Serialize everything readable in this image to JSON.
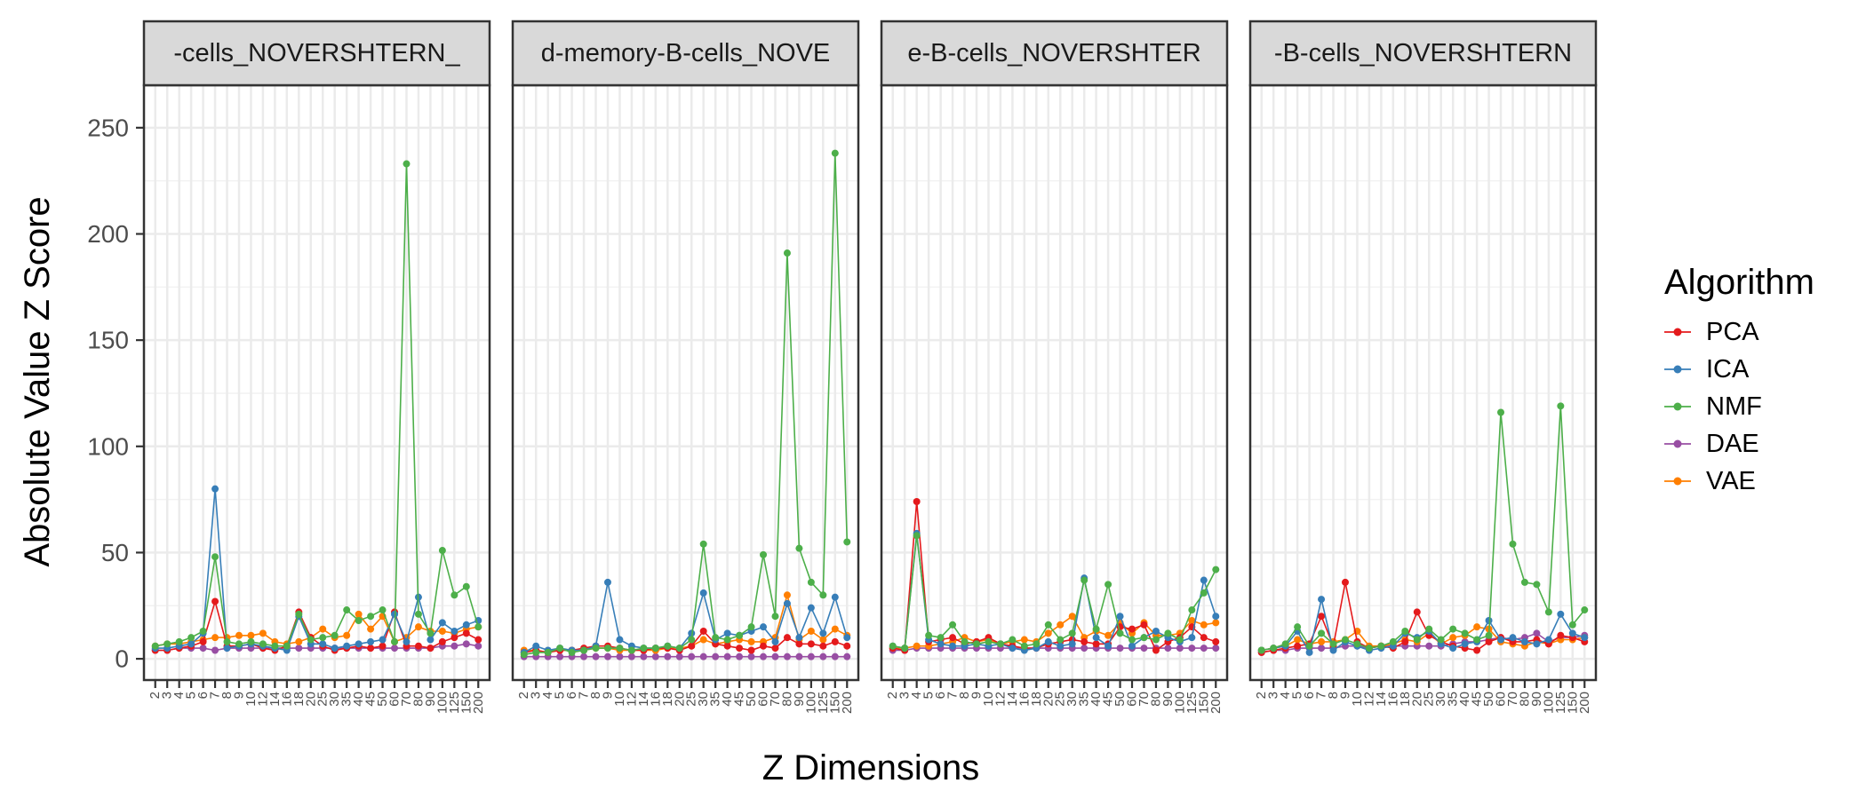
{
  "chart_data": {
    "type": "line",
    "ylabel": "Absolute Value Z Score",
    "xlabel": "Z Dimensions",
    "ylim": [
      -10,
      270
    ],
    "y_ticks": [
      0,
      50,
      100,
      150,
      200,
      250
    ],
    "x": [
      "2",
      "3",
      "4",
      "5",
      "6",
      "7",
      "8",
      "9",
      "10",
      "12",
      "14",
      "16",
      "18",
      "20",
      "25",
      "30",
      "35",
      "40",
      "45",
      "50",
      "60",
      "70",
      "80",
      "90",
      "100",
      "125",
      "150",
      "200"
    ],
    "x_tick_labels": [
      "2",
      "3",
      "4",
      "5",
      "6",
      "7",
      "8",
      "9",
      "10",
      "12",
      "14",
      "16",
      "18",
      "20",
      "25",
      "30",
      "35",
      "40",
      "45",
      "50",
      "60",
      "70",
      "80",
      "90",
      "100",
      "125",
      "150",
      "200"
    ],
    "legend": {
      "title": "Algorithm",
      "position": "right",
      "entries": [
        "PCA",
        "ICA",
        "NMF",
        "DAE",
        "VAE"
      ]
    },
    "colors": {
      "PCA": "#e41a1c",
      "ICA": "#377eb8",
      "NMF": "#4daf4a",
      "DAE": "#984ea3",
      "VAE": "#ff7f00"
    },
    "grid": true,
    "facets": [
      {
        "strip_text": "-cells_NOVERSHTERN_",
        "series": [
          {
            "name": "PCA",
            "values": [
              4,
              4,
              5,
              6,
              8,
              27,
              6,
              6,
              7,
              5,
              4,
              6,
              22,
              10,
              6,
              4,
              5,
              6,
              5,
              6,
              22,
              6,
              6,
              5,
              8,
              10,
              12,
              9
            ]
          },
          {
            "name": "ICA",
            "values": [
              5,
              5,
              6,
              7,
              12,
              80,
              5,
              6,
              7,
              6,
              5,
              4,
              20,
              7,
              7,
              5,
              6,
              7,
              8,
              9,
              21,
              8,
              29,
              9,
              17,
              13,
              16,
              18
            ]
          },
          {
            "name": "NMF",
            "values": [
              6,
              7,
              8,
              10,
              13,
              48,
              8,
              7,
              8,
              7,
              6,
              6,
              21,
              9,
              10,
              11,
              23,
              18,
              20,
              23,
              8,
              233,
              21,
              12,
              51,
              30,
              34,
              15
            ]
          },
          {
            "name": "DAE",
            "values": [
              4,
              4,
              5,
              5,
              5,
              4,
              5,
              5,
              5,
              5,
              5,
              5,
              5,
              5,
              5,
              5,
              5,
              5,
              5,
              5,
              5,
              5,
              5,
              5,
              6,
              6,
              7,
              6
            ]
          },
          {
            "name": "VAE",
            "values": [
              6,
              7,
              7,
              8,
              9,
              10,
              10,
              11,
              11,
              12,
              8,
              7,
              8,
              10,
              14,
              10,
              11,
              21,
              14,
              20,
              8,
              10,
              15,
              13,
              13,
              12,
              14,
              15
            ]
          }
        ]
      },
      {
        "strip_text": "d-memory-B-cells_NOVE",
        "series": [
          {
            "name": "PCA",
            "values": [
              3,
              4,
              3,
              4,
              4,
              5,
              6,
              6,
              5,
              4,
              4,
              5,
              5,
              4,
              6,
              13,
              7,
              6,
              5,
              4,
              6,
              5,
              10,
              7,
              7,
              6,
              8,
              6
            ]
          },
          {
            "name": "ICA",
            "values": [
              3,
              6,
              4,
              5,
              4,
              4,
              6,
              36,
              9,
              6,
              5,
              5,
              6,
              5,
              12,
              31,
              9,
              12,
              11,
              13,
              15,
              8,
              26,
              10,
              24,
              12,
              29,
              10
            ]
          },
          {
            "name": "NMF",
            "values": [
              2,
              3,
              3,
              5,
              3,
              4,
              5,
              5,
              5,
              4,
              5,
              5,
              6,
              5,
              9,
              54,
              10,
              9,
              11,
              15,
              49,
              20,
              191,
              52,
              36,
              30,
              238,
              55
            ]
          },
          {
            "name": "DAE",
            "values": [
              1,
              1,
              1,
              1,
              1,
              1,
              1,
              1,
              1,
              1,
              1,
              1,
              1,
              1,
              1,
              1,
              1,
              1,
              1,
              1,
              1,
              1,
              1,
              1,
              1,
              1,
              1,
              1
            ]
          },
          {
            "name": "VAE",
            "values": [
              4,
              4,
              3,
              4,
              4,
              4,
              5,
              5,
              4,
              4,
              4,
              4,
              5,
              5,
              6,
              9,
              7,
              8,
              9,
              8,
              8,
              10,
              30,
              9,
              13,
              9,
              14,
              11
            ]
          }
        ]
      },
      {
        "strip_text": "e-B-cells_NOVERSHTER",
        "series": [
          {
            "name": "PCA",
            "values": [
              5,
              4,
              74,
              8,
              9,
              10,
              7,
              8,
              10,
              7,
              6,
              5,
              5,
              7,
              8,
              9,
              8,
              7,
              7,
              15,
              14,
              16,
              4,
              8,
              10,
              15,
              10,
              8
            ]
          },
          {
            "name": "ICA",
            "values": [
              6,
              5,
              59,
              9,
              7,
              6,
              6,
              7,
              6,
              7,
              5,
              4,
              5,
              8,
              6,
              7,
              38,
              10,
              6,
              20,
              6,
              10,
              13,
              10,
              8,
              10,
              37,
              20
            ]
          },
          {
            "name": "NMF",
            "values": [
              6,
              5,
              58,
              11,
              10,
              16,
              8,
              7,
              8,
              7,
              9,
              6,
              7,
              16,
              9,
              12,
              37,
              14,
              35,
              12,
              9,
              10,
              9,
              12,
              9,
              23,
              31,
              42
            ]
          },
          {
            "name": "DAE",
            "values": [
              4,
              4,
              5,
              5,
              5,
              5,
              5,
              5,
              5,
              5,
              5,
              5,
              5,
              5,
              5,
              5,
              5,
              5,
              5,
              5,
              5,
              5,
              5,
              5,
              5,
              5,
              5,
              5
            ]
          },
          {
            "name": "VAE",
            "values": [
              5,
              5,
              6,
              6,
              7,
              8,
              10,
              8,
              9,
              7,
              8,
              9,
              8,
              12,
              16,
              20,
              10,
              13,
              11,
              17,
              12,
              17,
              11,
              11,
              12,
              18,
              16,
              17
            ]
          }
        ]
      },
      {
        "strip_text": "-B-cells_NOVERSHTERN",
        "series": [
          {
            "name": "PCA",
            "values": [
              3,
              4,
              5,
              6,
              7,
              20,
              6,
              36,
              8,
              5,
              6,
              5,
              8,
              22,
              11,
              8,
              6,
              5,
              4,
              8,
              10,
              8,
              8,
              9,
              7,
              11,
              10,
              8
            ]
          },
          {
            "name": "ICA",
            "values": [
              4,
              5,
              6,
              13,
              3,
              28,
              4,
              8,
              6,
              4,
              5,
              6,
              12,
              10,
              13,
              7,
              5,
              7,
              8,
              18,
              9,
              10,
              8,
              7,
              9,
              21,
              12,
              10
            ]
          },
          {
            "name": "NMF",
            "values": [
              4,
              5,
              7,
              15,
              6,
              12,
              7,
              9,
              7,
              5,
              6,
              8,
              13,
              9,
              14,
              9,
              14,
              12,
              9,
              11,
              116,
              54,
              36,
              35,
              22,
              119,
              16,
              23
            ]
          },
          {
            "name": "DAE",
            "values": [
              3,
              4,
              4,
              5,
              5,
              5,
              5,
              6,
              6,
              5,
              6,
              6,
              6,
              6,
              6,
              6,
              7,
              8,
              8,
              9,
              10,
              9,
              10,
              12,
              8,
              10,
              10,
              11
            ]
          },
          {
            "name": "VAE",
            "values": [
              4,
              5,
              6,
              9,
              7,
              8,
              8,
              9,
              13,
              6,
              6,
              7,
              9,
              8,
              12,
              7,
              10,
              11,
              15,
              14,
              8,
              7,
              6,
              8,
              7,
              9,
              9,
              10
            ]
          }
        ]
      }
    ]
  }
}
